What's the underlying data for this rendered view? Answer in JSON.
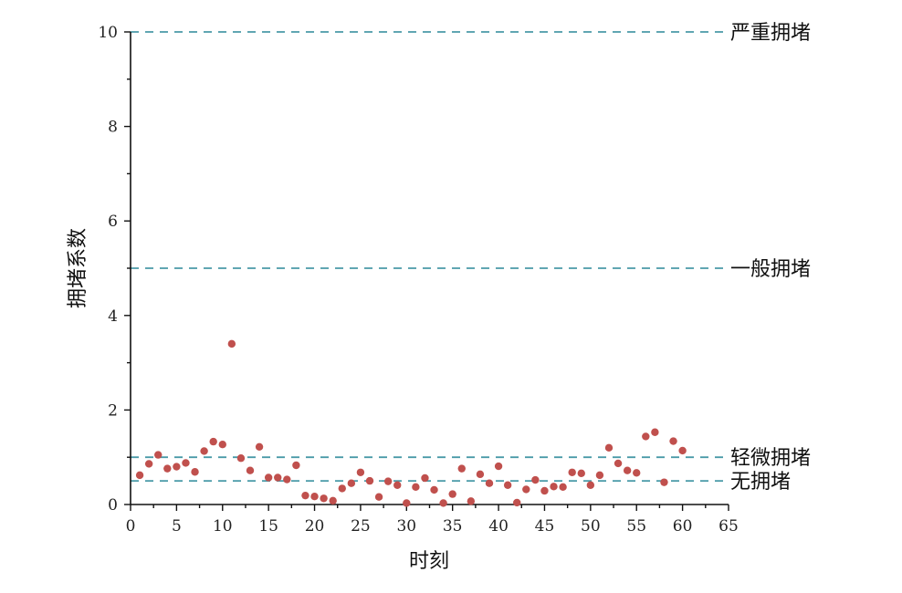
{
  "chart_data": {
    "type": "scatter",
    "xlabel": "时刻",
    "ylabel": "拥堵系数",
    "xlim": [
      0,
      65
    ],
    "ylim": [
      0,
      10
    ],
    "x_ticks": [
      0,
      5,
      10,
      15,
      20,
      25,
      30,
      35,
      40,
      45,
      50,
      55,
      60,
      65
    ],
    "y_ticks": [
      0,
      2,
      4,
      6,
      8,
      10
    ],
    "grid": false,
    "point_color": "#c0504d",
    "reference_line_color": "#4a9aa8",
    "reference_lines": [
      {
        "y": 10,
        "label": "严重拥堵"
      },
      {
        "y": 5,
        "label": "一般拥堵"
      },
      {
        "y": 1,
        "label": "轻微拥堵"
      },
      {
        "y": 0.5,
        "label": "无拥堵"
      }
    ],
    "x": [
      1,
      2,
      3,
      4,
      5,
      6,
      7,
      8,
      9,
      10,
      11,
      12,
      13,
      14,
      15,
      16,
      17,
      18,
      19,
      20,
      21,
      22,
      23,
      24,
      25,
      26,
      27,
      28,
      29,
      30,
      31,
      32,
      33,
      34,
      35,
      36,
      37,
      38,
      39,
      40,
      41,
      42,
      43,
      44,
      45,
      46,
      47,
      48,
      49,
      50,
      51,
      52,
      53,
      54,
      55,
      56,
      57,
      58,
      59,
      60
    ],
    "y": [
      0.62,
      0.86,
      1.05,
      0.76,
      0.8,
      0.88,
      0.69,
      1.13,
      1.33,
      1.27,
      3.4,
      0.98,
      0.72,
      1.22,
      0.57,
      0.57,
      0.53,
      0.83,
      0.19,
      0.17,
      0.13,
      0.08,
      0.34,
      0.45,
      0.68,
      0.5,
      0.16,
      0.49,
      0.41,
      0.03,
      0.37,
      0.56,
      0.31,
      0.03,
      0.22,
      0.76,
      0.07,
      0.64,
      0.45,
      0.81,
      0.41,
      0.04,
      0.32,
      0.52,
      0.29,
      0.38,
      0.37,
      0.68,
      0.66,
      0.41,
      0.62,
      1.2,
      0.87,
      0.72,
      0.67,
      1.44,
      1.53,
      0.47,
      1.34,
      1.14
    ]
  }
}
